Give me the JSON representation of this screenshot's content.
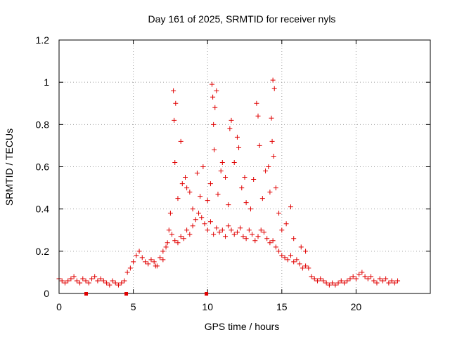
{
  "chart_data": {
    "type": "scatter",
    "title": "Day 161 of 2025, SRMTID for receiver nyls",
    "xlabel": "GPS time / hours",
    "ylabel": "SRMTID / TECUs",
    "xlim": [
      0,
      25
    ],
    "ylim": [
      0,
      1.2
    ],
    "x_ticks": [
      0,
      5,
      10,
      15,
      20
    ],
    "x_tick_labels": [
      "0",
      "5",
      "10",
      "15",
      "20"
    ],
    "y_ticks": [
      0,
      0.2,
      0.4,
      0.6,
      0.8,
      1,
      1.2
    ],
    "y_tick_labels": [
      "0",
      "0.2",
      "0.4",
      "0.6",
      "0.8",
      "1",
      "1.2"
    ],
    "grid": true,
    "marker": "+",
    "color": "#e00000",
    "data_gaps_x": [
      1.8,
      4.5,
      9.9
    ],
    "series": [
      {
        "name": "SRMTID",
        "x": [
          0.0,
          0.2,
          0.4,
          0.6,
          0.8,
          1.0,
          1.2,
          1.4,
          1.6,
          1.8,
          2.0,
          2.2,
          2.4,
          2.6,
          2.8,
          3.0,
          3.2,
          3.4,
          3.6,
          3.8,
          4.0,
          4.2,
          4.4,
          4.6,
          4.8,
          5.0,
          5.2,
          5.4,
          5.6,
          5.8,
          6.0,
          6.2,
          6.4,
          6.6,
          6.8,
          7.0,
          7.2,
          7.4,
          7.6,
          7.8,
          8.0,
          8.2,
          8.4,
          8.6,
          8.8,
          9.0,
          9.2,
          9.4,
          9.6,
          9.8,
          10.0,
          10.2,
          10.4,
          10.6,
          10.8,
          11.0,
          11.2,
          11.4,
          11.6,
          11.8,
          12.0,
          12.2,
          12.4,
          12.6,
          12.8,
          13.0,
          13.2,
          13.4,
          13.6,
          13.8,
          14.0,
          14.2,
          14.4,
          14.6,
          14.8,
          15.0,
          15.2,
          15.4,
          15.6,
          15.8,
          16.0,
          16.2,
          16.4,
          16.6,
          16.8,
          17.0,
          17.2,
          17.4,
          17.6,
          17.8,
          18.0,
          18.2,
          18.4,
          18.6,
          18.8,
          19.0,
          19.2,
          19.4,
          19.6,
          19.8,
          20.0,
          20.2,
          20.4,
          20.6,
          20.8,
          21.0,
          21.2,
          21.4,
          21.6,
          21.8,
          22.0,
          22.2,
          22.4,
          22.6,
          22.8,
          7.7,
          7.75,
          7.8,
          7.85,
          8.2,
          8.5,
          8.6,
          10.3,
          10.35,
          10.4,
          10.45,
          10.5,
          10.6,
          11.0,
          11.5,
          11.6,
          12.0,
          12.1,
          12.5,
          13.3,
          13.4,
          13.5,
          14.1,
          14.3,
          14.35,
          14.4,
          14.45,
          14.5,
          14.6,
          15.6,
          6.5,
          7.0,
          7.3,
          7.5,
          8.0,
          8.3,
          8.8,
          9.0,
          9.3,
          9.5,
          9.7,
          10.0,
          10.2,
          10.7,
          10.9,
          11.2,
          11.4,
          11.8,
          12.3,
          12.6,
          12.9,
          13.1,
          13.7,
          13.9,
          14.2,
          14.8,
          15.0,
          15.3,
          15.8,
          16.3,
          16.6
        ],
        "y": [
          0.07,
          0.06,
          0.05,
          0.06,
          0.07,
          0.08,
          0.06,
          0.05,
          0.07,
          0.06,
          0.05,
          0.07,
          0.08,
          0.06,
          0.07,
          0.06,
          0.05,
          0.04,
          0.06,
          0.05,
          0.04,
          0.05,
          0.06,
          0.1,
          0.12,
          0.15,
          0.18,
          0.2,
          0.17,
          0.15,
          0.14,
          0.16,
          0.15,
          0.13,
          0.17,
          0.16,
          0.22,
          0.3,
          0.28,
          0.25,
          0.24,
          0.27,
          0.26,
          0.3,
          0.28,
          0.32,
          0.35,
          0.38,
          0.36,
          0.33,
          0.3,
          0.34,
          0.28,
          0.31,
          0.29,
          0.3,
          0.27,
          0.32,
          0.3,
          0.28,
          0.29,
          0.31,
          0.27,
          0.26,
          0.3,
          0.28,
          0.25,
          0.27,
          0.3,
          0.29,
          0.26,
          0.24,
          0.25,
          0.22,
          0.2,
          0.18,
          0.17,
          0.16,
          0.18,
          0.15,
          0.16,
          0.14,
          0.12,
          0.13,
          0.12,
          0.08,
          0.07,
          0.06,
          0.07,
          0.06,
          0.05,
          0.04,
          0.05,
          0.04,
          0.05,
          0.06,
          0.05,
          0.06,
          0.07,
          0.08,
          0.07,
          0.09,
          0.1,
          0.08,
          0.07,
          0.08,
          0.06,
          0.05,
          0.07,
          0.06,
          0.07,
          0.05,
          0.06,
          0.05,
          0.06,
          0.96,
          0.82,
          0.62,
          0.9,
          0.72,
          0.55,
          0.5,
          0.99,
          0.93,
          0.8,
          0.68,
          0.88,
          0.96,
          0.62,
          0.78,
          0.82,
          0.74,
          0.69,
          0.55,
          0.9,
          0.84,
          0.7,
          0.6,
          0.83,
          0.72,
          1.01,
          0.65,
          0.97,
          0.5,
          0.41,
          0.13,
          0.2,
          0.24,
          0.38,
          0.45,
          0.52,
          0.48,
          0.4,
          0.57,
          0.46,
          0.6,
          0.44,
          0.52,
          0.47,
          0.58,
          0.55,
          0.42,
          0.62,
          0.5,
          0.43,
          0.4,
          0.54,
          0.45,
          0.58,
          0.48,
          0.38,
          0.3,
          0.33,
          0.26,
          0.22,
          0.2
        ]
      }
    ]
  }
}
